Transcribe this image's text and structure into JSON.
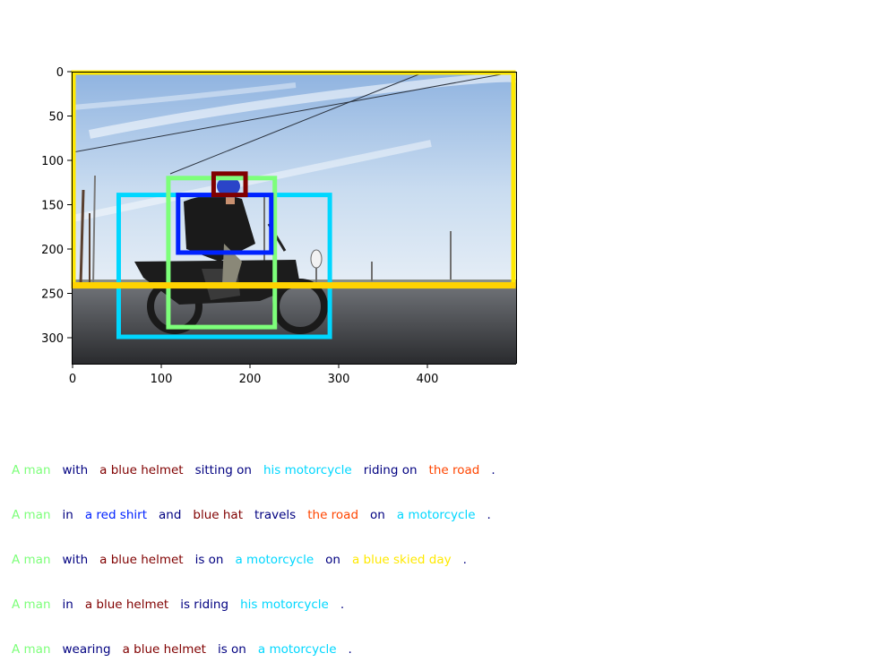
{
  "image": {
    "width": 500,
    "height": 330,
    "x_ticks": [
      "0",
      "100",
      "200",
      "300",
      "400"
    ],
    "y_ticks": [
      "0",
      "50",
      "100",
      "150",
      "200",
      "250",
      "300"
    ],
    "x_tick_values": [
      0,
      100,
      200,
      300,
      400
    ],
    "y_tick_values": [
      0,
      50,
      100,
      150,
      200,
      250,
      300
    ]
  },
  "boxes": [
    {
      "label": "a blue skied day",
      "color": "#ffe900",
      "x1": 1,
      "y1": 1,
      "x2": 497,
      "y2": 240
    },
    {
      "label": "his motorcycle",
      "color": "#00d7ff",
      "x1": 52,
      "y1": 139,
      "x2": 290,
      "y2": 299
    },
    {
      "label": "A man",
      "color": "#7dff7a",
      "x1": 108,
      "y1": 120,
      "x2": 228,
      "y2": 288
    },
    {
      "label": "a red shirt",
      "color": "#0022ff",
      "x1": 119,
      "y1": 139,
      "x2": 224,
      "y2": 204
    },
    {
      "label": "a blue helmet",
      "color": "#800000",
      "x1": 159,
      "y1": 115,
      "x2": 195,
      "y2": 139
    },
    {
      "label": "the road",
      "color": "#ffd200",
      "x1": 1,
      "y1": 240,
      "x2": 497,
      "y2": 242
    }
  ],
  "captions": [
    [
      {
        "text": "A man",
        "color": "#7dff7a"
      },
      {
        "text": "with",
        "color": "#000080"
      },
      {
        "text": "a blue helmet",
        "color": "#800000"
      },
      {
        "text": "sitting on",
        "color": "#000080"
      },
      {
        "text": "his motorcycle",
        "color": "#00d7ff"
      },
      {
        "text": "riding on",
        "color": "#000080"
      },
      {
        "text": "the road",
        "color": "#ff4500"
      },
      {
        "text": ".",
        "color": "#000080"
      }
    ],
    [
      {
        "text": "A man",
        "color": "#7dff7a"
      },
      {
        "text": "in",
        "color": "#000080"
      },
      {
        "text": "a red shirt",
        "color": "#0022ff"
      },
      {
        "text": "and",
        "color": "#000080"
      },
      {
        "text": "blue hat",
        "color": "#800000"
      },
      {
        "text": "travels",
        "color": "#000080"
      },
      {
        "text": "the road",
        "color": "#ff4500"
      },
      {
        "text": "on",
        "color": "#000080"
      },
      {
        "text": "a motorcycle",
        "color": "#00d7ff"
      },
      {
        "text": ".",
        "color": "#000080"
      }
    ],
    [
      {
        "text": "A man",
        "color": "#7dff7a"
      },
      {
        "text": "with",
        "color": "#000080"
      },
      {
        "text": "a blue helmet",
        "color": "#800000"
      },
      {
        "text": "is on",
        "color": "#000080"
      },
      {
        "text": "a motorcycle",
        "color": "#00d7ff"
      },
      {
        "text": "on",
        "color": "#000080"
      },
      {
        "text": "a blue skied day",
        "color": "#ffe900"
      },
      {
        "text": ".",
        "color": "#000080"
      }
    ],
    [
      {
        "text": "A man",
        "color": "#7dff7a"
      },
      {
        "text": "in",
        "color": "#000080"
      },
      {
        "text": "a blue helmet",
        "color": "#800000"
      },
      {
        "text": "is riding",
        "color": "#000080"
      },
      {
        "text": "his motorcycle",
        "color": "#00d7ff"
      },
      {
        "text": ".",
        "color": "#000080"
      }
    ],
    [
      {
        "text": "A man",
        "color": "#7dff7a"
      },
      {
        "text": "wearing",
        "color": "#000080"
      },
      {
        "text": "a blue helmet",
        "color": "#800000"
      },
      {
        "text": "is on",
        "color": "#000080"
      },
      {
        "text": "a motorcycle",
        "color": "#00d7ff"
      },
      {
        "text": ".",
        "color": "#000080"
      }
    ]
  ]
}
